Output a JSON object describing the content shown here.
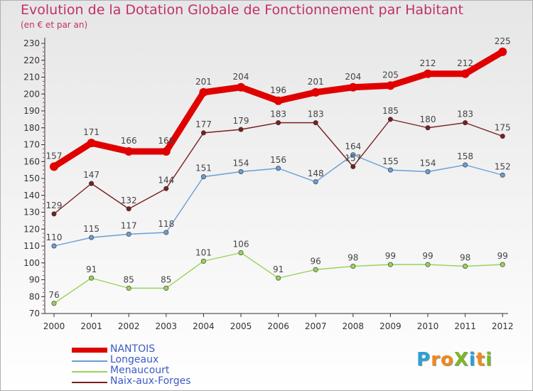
{
  "title": "Evolution de la Dotation Globale de Fonctionnement par Habitant",
  "subtitle": "(en € et par an)",
  "logo": {
    "text": "ProXiti",
    "letters": [
      "P",
      "r",
      "o",
      "X",
      "i",
      "t",
      "i"
    ],
    "colors": [
      "#2aa0d8",
      "#f08a1c",
      "#f08a1c",
      "#7ab828",
      "#2aa0d8",
      "#f08a1c",
      "#7ab828"
    ]
  },
  "chart_data": {
    "type": "line",
    "title": "Evolution de la Dotation Globale de Fonctionnement par Habitant",
    "ylabel": "(en € et par an)",
    "xlabel": "",
    "categories": [
      "2000",
      "2001",
      "2002",
      "2003",
      "2004",
      "2005",
      "2006",
      "2007",
      "2008",
      "2009",
      "2010",
      "2011",
      "2012"
    ],
    "ylim": [
      70,
      230
    ],
    "yticks": [
      "70",
      "80",
      "90",
      "100",
      "110",
      "120",
      "130",
      "140",
      "150",
      "160",
      "170",
      "180",
      "190",
      "200",
      "210",
      "220",
      "230"
    ],
    "grid": false,
    "legend_position": "bottom-left",
    "series": [
      {
        "name": "NANTOIS",
        "color": "#e00000",
        "values": [
          157,
          171,
          166,
          166,
          201,
          204,
          196,
          201,
          204,
          205,
          212,
          212,
          225
        ],
        "labels": [
          "157",
          "171",
          "166",
          "166",
          "201",
          "204",
          "196",
          "201",
          "204",
          "205",
          "212",
          "212",
          "225"
        ]
      },
      {
        "name": "Longeaux",
        "color": "#6a9ed4",
        "values": [
          110,
          115,
          117,
          118,
          151,
          154,
          156,
          148,
          164,
          155,
          154,
          158,
          152
        ],
        "labels": [
          "110",
          "115",
          "117",
          "118",
          "151",
          "154",
          "156",
          "148",
          "164",
          "155",
          "154",
          "158",
          "152"
        ]
      },
      {
        "name": "Menaucourt",
        "color": "#9ad25a",
        "values": [
          76,
          91,
          85,
          85,
          101,
          106,
          91,
          96,
          98,
          99,
          99,
          98,
          99
        ],
        "labels": [
          "76",
          "91",
          "85",
          "85",
          "101",
          "106",
          "91",
          "96",
          "98",
          "99",
          "99",
          "98",
          "99"
        ]
      },
      {
        "name": "Naix-aux-Forges",
        "color": "#7a1f1f",
        "values": [
          129,
          147,
          132,
          144,
          177,
          179,
          183,
          183,
          157,
          185,
          180,
          183,
          175
        ],
        "labels": [
          "129",
          "147",
          "132",
          "144",
          "177",
          "179",
          "183",
          "183",
          "157",
          "185",
          "180",
          "183",
          "175"
        ]
      }
    ]
  }
}
